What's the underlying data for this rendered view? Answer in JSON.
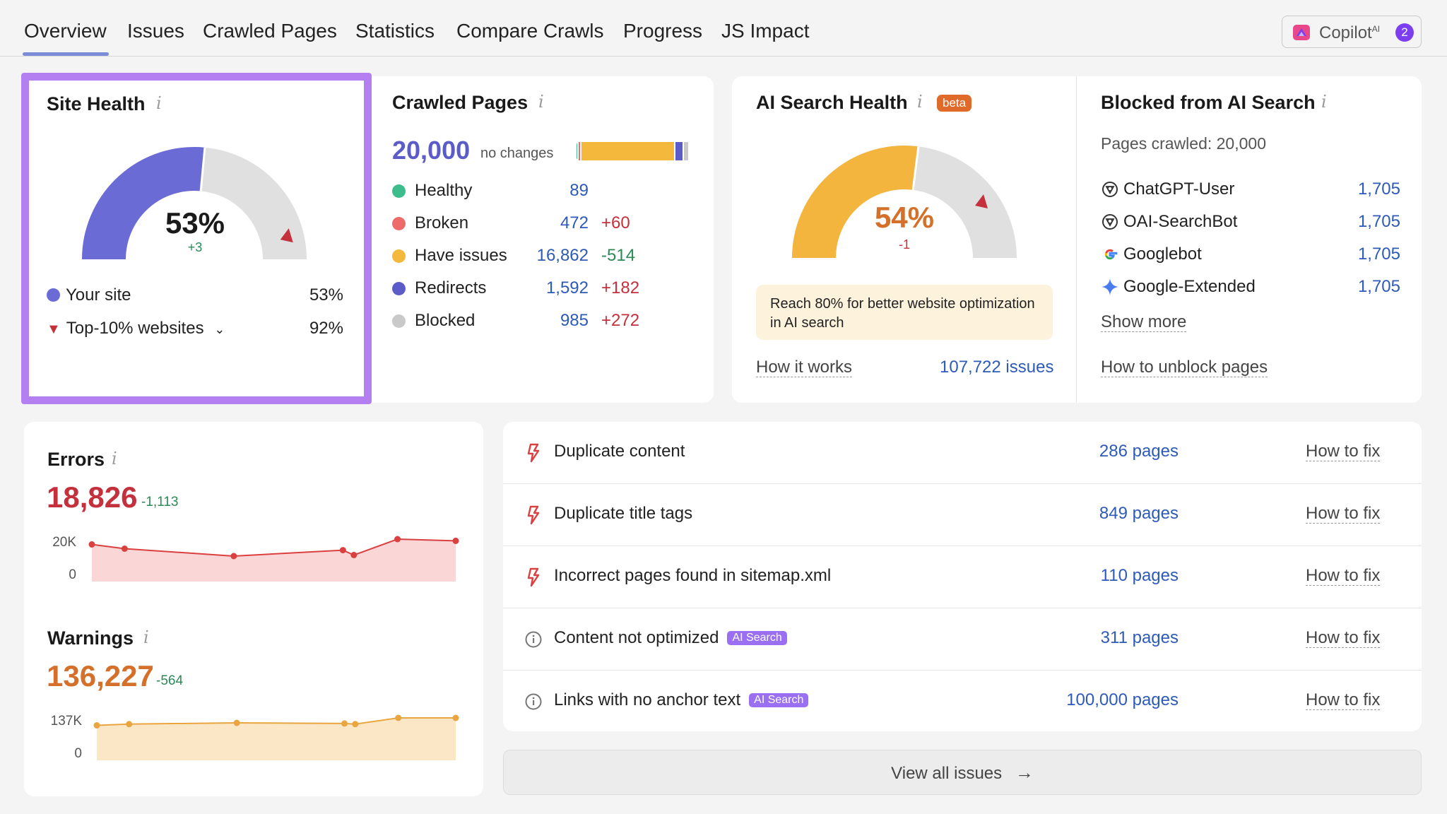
{
  "nav": {
    "tabs": [
      "Overview",
      "Issues",
      "Crawled Pages",
      "Statistics",
      "Compare Crawls",
      "Progress",
      "JS Impact"
    ],
    "copilot_label": "Copilot",
    "copilot_sup": "AI",
    "copilot_badge": "2"
  },
  "site_health": {
    "title": "Site Health",
    "info": "i",
    "percent": "53%",
    "value": 53,
    "change": "+3",
    "legend": [
      {
        "label": "Your site",
        "value": "53%"
      },
      {
        "label": "Top-10% websites",
        "value": "92%"
      }
    ],
    "colors": {
      "fill": "#6b6bd6",
      "track": "#e0e0e0",
      "marker": "#c4303c"
    }
  },
  "crawled_pages": {
    "title": "Crawled Pages",
    "info": "i",
    "total": "20,000",
    "total_note": "no changes",
    "rows": [
      {
        "label": "Healthy",
        "value": "89",
        "change": "",
        "color": "#3dbd8b"
      },
      {
        "label": "Broken",
        "value": "472",
        "change": "+60",
        "color": "#ee6b6b"
      },
      {
        "label": "Have issues",
        "value": "16,862",
        "change": "-514",
        "color": "#f3b83c"
      },
      {
        "label": "Redirects",
        "value": "1,592",
        "change": "+182",
        "color": "#5c5cc8"
      },
      {
        "label": "Blocked",
        "value": "985",
        "change": "+272",
        "color": "#c9c9c9"
      }
    ]
  },
  "ai_search_health": {
    "title": "AI Search Health",
    "info": "i",
    "beta": "beta",
    "percent": "54%",
    "value": 54,
    "change": "-1",
    "tip": "Reach 80% for better website optimization in AI search",
    "how_it_works": "How it works",
    "issues_link": "107,722 issues",
    "colors": {
      "fill": "#f3b53d",
      "track": "#e0e0e0",
      "marker": "#c4303c",
      "percent": "#d4702a"
    }
  },
  "blocked_ai": {
    "title": "Blocked from AI Search",
    "info": "i",
    "pages_crawled": "Pages crawled: 20,000",
    "bots": [
      {
        "name": "ChatGPT-User",
        "value": "1,705",
        "icon": "openai-icon"
      },
      {
        "name": "OAI-SearchBot",
        "value": "1,705",
        "icon": "openai-icon"
      },
      {
        "name": "Googlebot",
        "value": "1,705",
        "icon": "google-icon"
      },
      {
        "name": "Google-Extended",
        "value": "1,705",
        "icon": "gemini-icon"
      }
    ],
    "show_more": "Show more",
    "how_to_unblock": "How to unblock pages"
  },
  "errors": {
    "title": "Errors",
    "info": "i",
    "value": "18,826",
    "change": "-1,113",
    "y_top": "20K",
    "y_bottom": "0",
    "color": "#c4303c"
  },
  "warnings": {
    "title": "Warnings",
    "info": "i",
    "value": "136,227",
    "change": "-564",
    "y_top": "137K",
    "y_bottom": "0",
    "color": "#d4702a"
  },
  "issues": {
    "rows": [
      {
        "type": "error",
        "label": "Duplicate content",
        "badge": "",
        "pages": "286 pages",
        "fix": "How to fix"
      },
      {
        "type": "error",
        "label": "Duplicate title tags",
        "badge": "",
        "pages": "849 pages",
        "fix": "How to fix"
      },
      {
        "type": "error",
        "label": "Incorrect pages found in sitemap.xml",
        "badge": "",
        "pages": "110 pages",
        "fix": "How to fix"
      },
      {
        "type": "notice",
        "label": "Content not optimized",
        "badge": "AI Search",
        "pages": "311 pages",
        "fix": "How to fix"
      },
      {
        "type": "notice",
        "label": "Links with no anchor text",
        "badge": "AI Search",
        "pages": "100,000 pages",
        "fix": "How to fix"
      }
    ],
    "view_all": "View all issues"
  },
  "chart_data": [
    {
      "type": "area",
      "title": "Errors",
      "x": [
        1,
        2,
        3,
        4,
        5,
        6,
        7
      ],
      "values": [
        17500,
        15500,
        12000,
        14800,
        12500,
        20000,
        19200
      ],
      "ylim": [
        0,
        20000
      ],
      "color": "#d9403f"
    },
    {
      "type": "area",
      "title": "Warnings",
      "x": [
        1,
        2,
        3,
        4,
        5,
        6,
        7
      ],
      "values": [
        113000,
        117000,
        121000,
        119000,
        117000,
        137000,
        137000
      ],
      "ylim": [
        0,
        137000
      ],
      "color": "#e9a640"
    }
  ]
}
